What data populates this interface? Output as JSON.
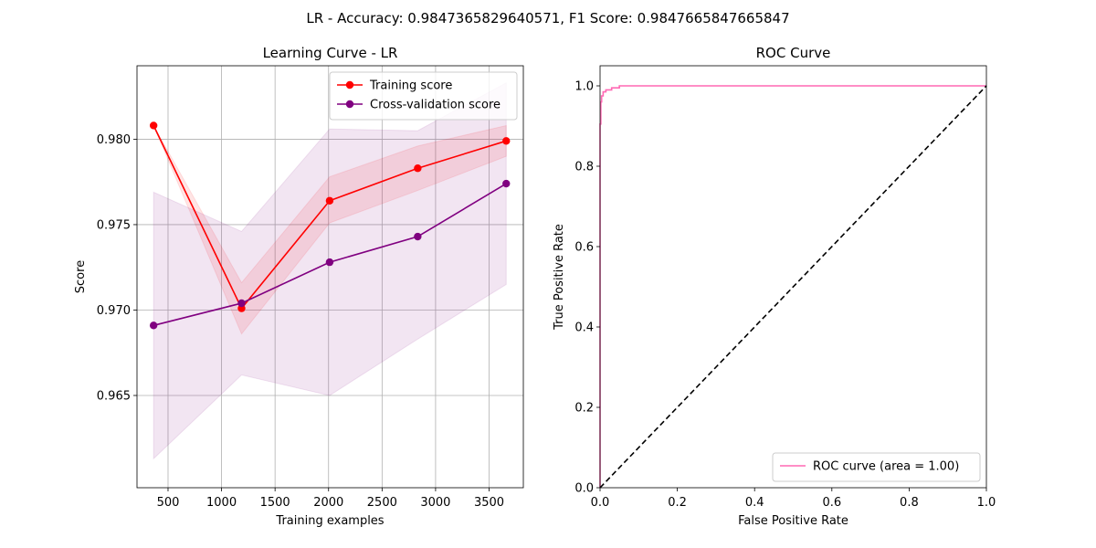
{
  "figure": {
    "suptitle": "LR - Accuracy: 0.9847365829640571, F1 Score: 0.9847665847665847"
  },
  "chart_data": [
    {
      "type": "line",
      "title": "Learning Curve - LR",
      "xlabel": "Training examples",
      "ylabel": "Score",
      "xlim": [
        210,
        3820
      ],
      "ylim": [
        0.9596,
        0.9843
      ],
      "xticks": [
        500,
        1000,
        1500,
        2000,
        2500,
        3000,
        3500
      ],
      "xtick_labels": [
        "500",
        "1000",
        "1500",
        "2000",
        "2500",
        "3000",
        "3500"
      ],
      "yticks": [
        0.965,
        0.97,
        0.975,
        0.98
      ],
      "ytick_labels": [
        "0.965",
        "0.970",
        "0.975",
        "0.980"
      ],
      "grid": true,
      "legend_position": "upper-right",
      "x": [
        365,
        1187,
        2010,
        2833,
        3660
      ],
      "series": [
        {
          "name": "Training score",
          "color": "#ff0000",
          "marker": "circle",
          "values": [
            0.9808,
            0.9701,
            0.9764,
            0.9783,
            0.9799
          ],
          "band_lower": [
            0.9808,
            0.9686,
            0.9751,
            0.977,
            0.979
          ],
          "band_upper": [
            0.9808,
            0.9716,
            0.9778,
            0.9796,
            0.9808
          ],
          "band_color": "#ff0000",
          "band_opacity": 0.1
        },
        {
          "name": "Cross-validation score",
          "color": "#800080",
          "marker": "circle",
          "values": [
            0.9691,
            0.9704,
            0.9728,
            0.9743,
            0.9774
          ],
          "band_lower": [
            0.9613,
            0.9662,
            0.965,
            0.9683,
            0.9715
          ],
          "band_upper": [
            0.9769,
            0.9746,
            0.9806,
            0.9805,
            0.9833
          ],
          "band_color": "#800080",
          "band_opacity": 0.1
        }
      ]
    },
    {
      "type": "line",
      "title": "ROC Curve",
      "xlabel": "False Positive Rate",
      "ylabel": "True Positive Rate",
      "xlim": [
        0.0,
        1.0
      ],
      "ylim": [
        0.0,
        1.05
      ],
      "xticks": [
        0.0,
        0.2,
        0.4,
        0.6,
        0.8,
        1.0
      ],
      "xtick_labels": [
        "0.0",
        "0.2",
        "0.4",
        "0.6",
        "0.8",
        "1.0"
      ],
      "yticks": [
        0.0,
        0.2,
        0.4,
        0.6,
        0.8,
        1.0
      ],
      "ytick_labels": [
        "0.0",
        "0.2",
        "0.4",
        "0.6",
        "0.8",
        "1.0"
      ],
      "grid": false,
      "legend_position": "lower-right",
      "series": [
        {
          "name": "ROC curve (area = 1.00)",
          "color": "#ff69b4",
          "x": [
            0.0,
            0.0,
            0.002,
            0.002,
            0.004,
            0.004,
            0.008,
            0.008,
            0.015,
            0.015,
            0.03,
            0.03,
            0.05,
            0.05,
            1.0
          ],
          "y": [
            0.0,
            0.905,
            0.905,
            0.96,
            0.96,
            0.975,
            0.975,
            0.985,
            0.985,
            0.99,
            0.99,
            0.995,
            0.995,
            1.0,
            1.0
          ]
        },
        {
          "color": "#000000",
          "dashed": true,
          "x": [
            0.0,
            1.0
          ],
          "y": [
            0.0,
            1.0
          ]
        }
      ]
    }
  ]
}
